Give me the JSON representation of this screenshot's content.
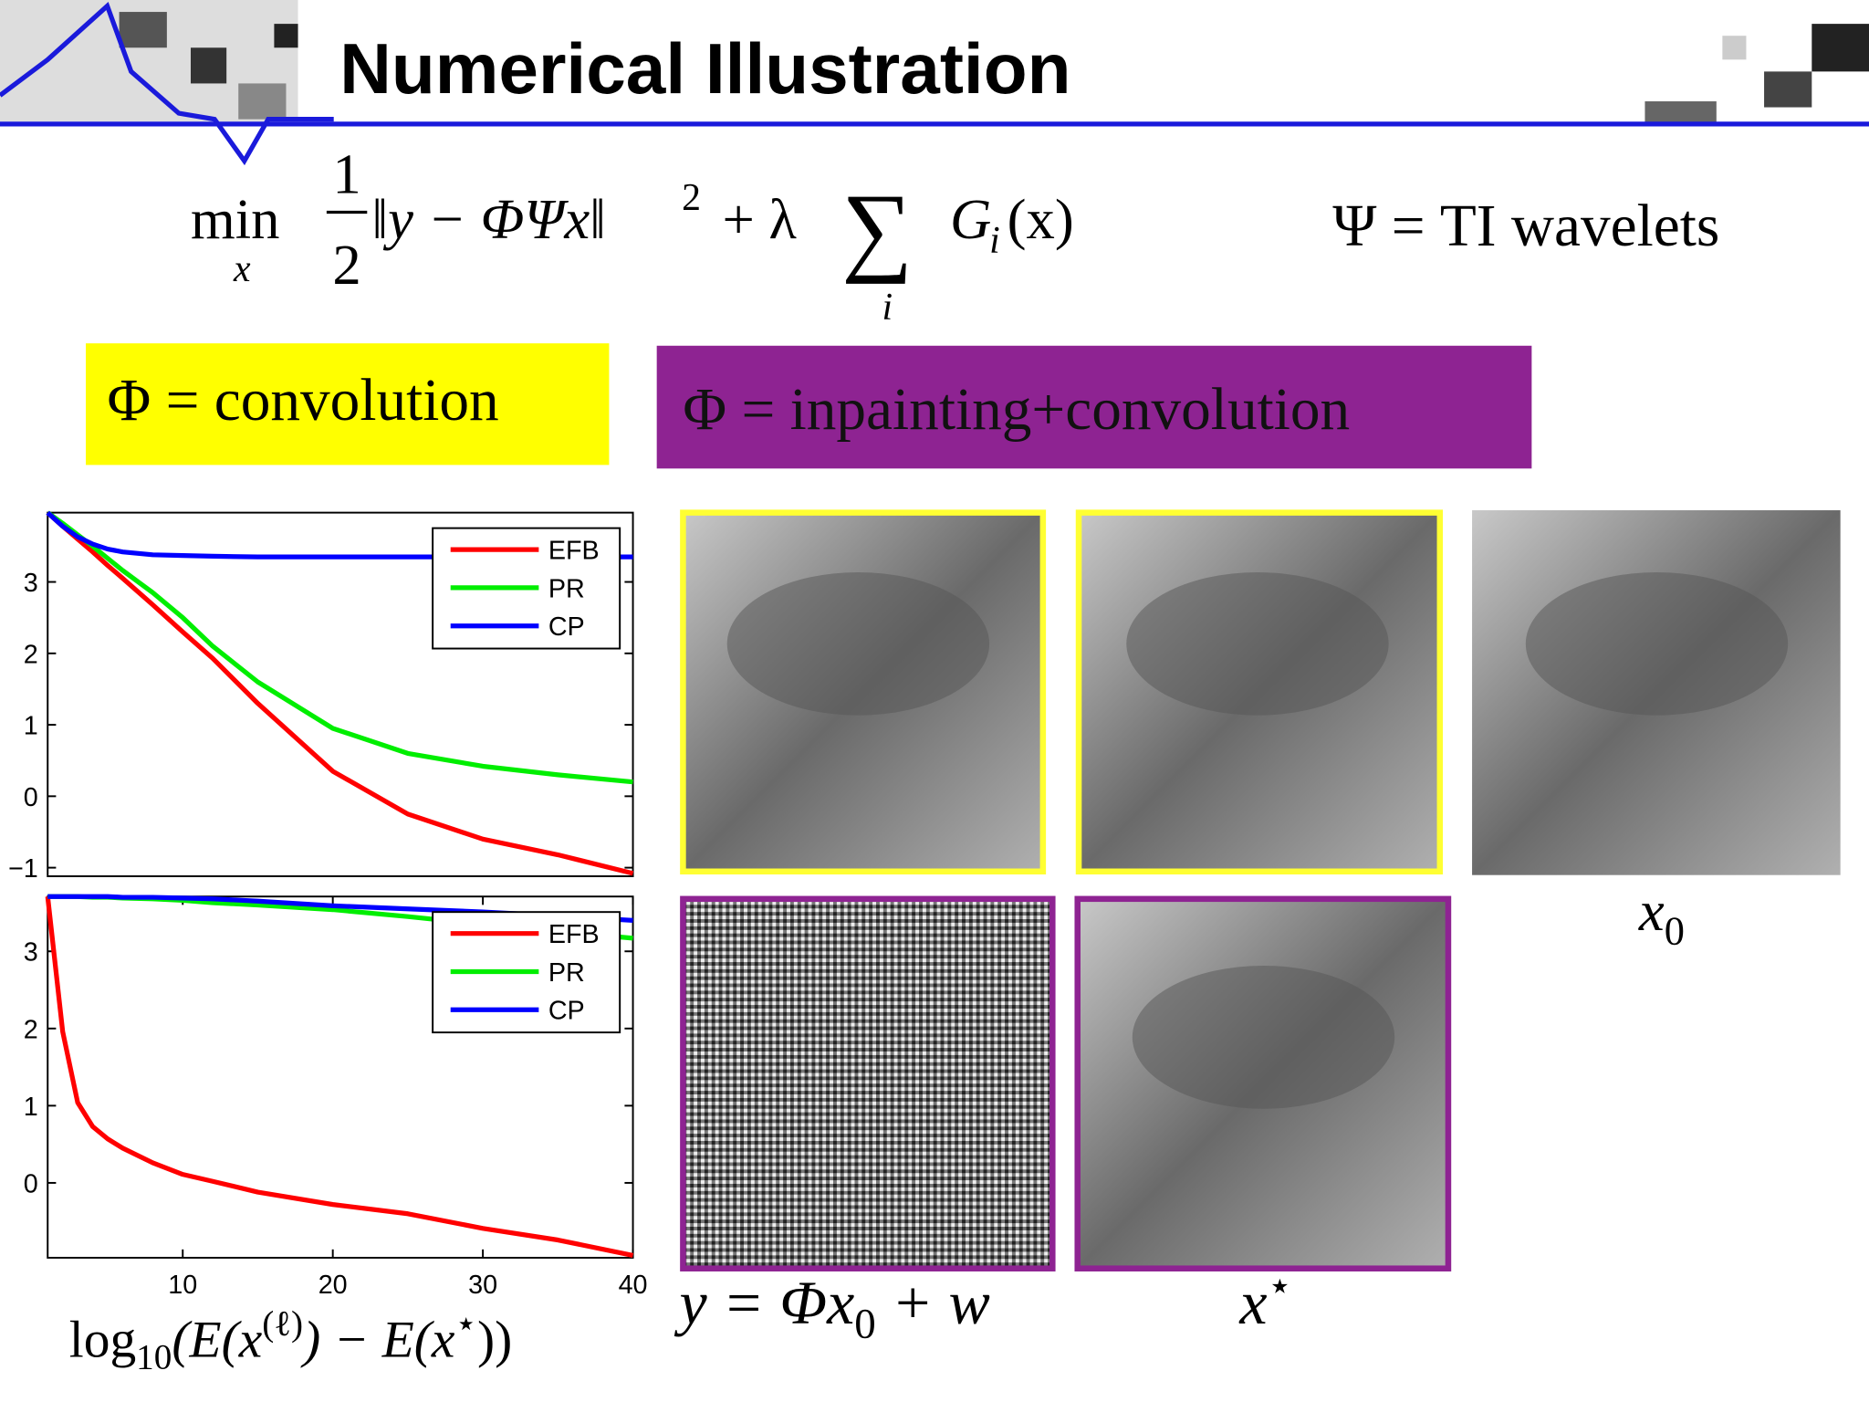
{
  "header": {
    "title": "Numerical Illustration"
  },
  "formula": {
    "min": "min",
    "min_sub": "x",
    "num": "1",
    "den": "2",
    "norm": "‖y − ΦΨx‖",
    "power": "2",
    "plus": "+ λ",
    "sum": "∑",
    "sum_sub": "i",
    "g": "G",
    "g_sub": "i",
    "arg": "(x)"
  },
  "basis": "Ψ = TI wavelets",
  "boxes": {
    "conv": "Φ = convolution",
    "inpaint": "Φ = inpainting+convolution"
  },
  "captions": {
    "x0": {
      "main": "x",
      "sub": "0"
    },
    "y": {
      "a": "y = Φx",
      "sub": "0",
      "b": " + w"
    },
    "xstar": {
      "main": "x",
      "sup": "⋆"
    }
  },
  "chart_data": [
    {
      "type": "line",
      "x": [
        1,
        2,
        3,
        4,
        5,
        6,
        8,
        10,
        12,
        15,
        20,
        25,
        30,
        35,
        40
      ],
      "xlim": [
        1,
        40
      ],
      "ylim": [
        -1.12,
        3.97
      ],
      "yticks": [
        {
          "value": -1,
          "label": "−1"
        },
        0,
        1,
        2,
        3
      ],
      "legend": "upper right",
      "series": [
        {
          "name": "EFB",
          "color": "#ff0000",
          "values": [
            3.97,
            3.78,
            3.6,
            3.42,
            3.23,
            3.05,
            2.68,
            2.3,
            1.93,
            1.3,
            0.35,
            -0.25,
            -0.6,
            -0.82,
            -1.08
          ]
        },
        {
          "name": "PR",
          "color": "#00ee00",
          "values": [
            3.97,
            3.82,
            3.66,
            3.5,
            3.33,
            3.16,
            2.85,
            2.5,
            2.1,
            1.6,
            0.95,
            0.6,
            0.42,
            0.3,
            0.2
          ]
        },
        {
          "name": "CP",
          "color": "#0000ff",
          "values": [
            3.97,
            3.78,
            3.63,
            3.53,
            3.46,
            3.42,
            3.38,
            3.37,
            3.36,
            3.35,
            3.35,
            3.35,
            3.35,
            3.35,
            3.35
          ]
        }
      ]
    },
    {
      "type": "line",
      "x": [
        1,
        2,
        3,
        4,
        5,
        6,
        8,
        10,
        12,
        15,
        20,
        25,
        30,
        35,
        40
      ],
      "xlim": [
        1,
        40
      ],
      "ylim": [
        -0.97,
        3.71
      ],
      "xticks": [
        10,
        20,
        30,
        40
      ],
      "yticks": [
        0,
        1,
        2,
        3
      ],
      "legend": "upper right",
      "xlabel": [
        "log",
        "10",
        "(E(x",
        "(ℓ)",
        ") − E(x",
        "⋆",
        "))"
      ],
      "series": [
        {
          "name": "EFB",
          "color": "#ff0000",
          "values": [
            3.71,
            1.96,
            1.04,
            0.73,
            0.57,
            0.45,
            0.26,
            0.11,
            0.02,
            -0.12,
            -0.28,
            -0.4,
            -0.59,
            -0.74,
            -0.94
          ]
        },
        {
          "name": "PR",
          "color": "#00ee00",
          "values": [
            3.71,
            3.71,
            3.71,
            3.7,
            3.7,
            3.69,
            3.68,
            3.66,
            3.63,
            3.6,
            3.54,
            3.45,
            3.35,
            3.26,
            3.17
          ]
        },
        {
          "name": "CP",
          "color": "#0000ff",
          "values": [
            3.71,
            3.71,
            3.71,
            3.71,
            3.71,
            3.7,
            3.7,
            3.69,
            3.68,
            3.65,
            3.59,
            3.55,
            3.51,
            3.46,
            3.4
          ]
        }
      ]
    }
  ]
}
